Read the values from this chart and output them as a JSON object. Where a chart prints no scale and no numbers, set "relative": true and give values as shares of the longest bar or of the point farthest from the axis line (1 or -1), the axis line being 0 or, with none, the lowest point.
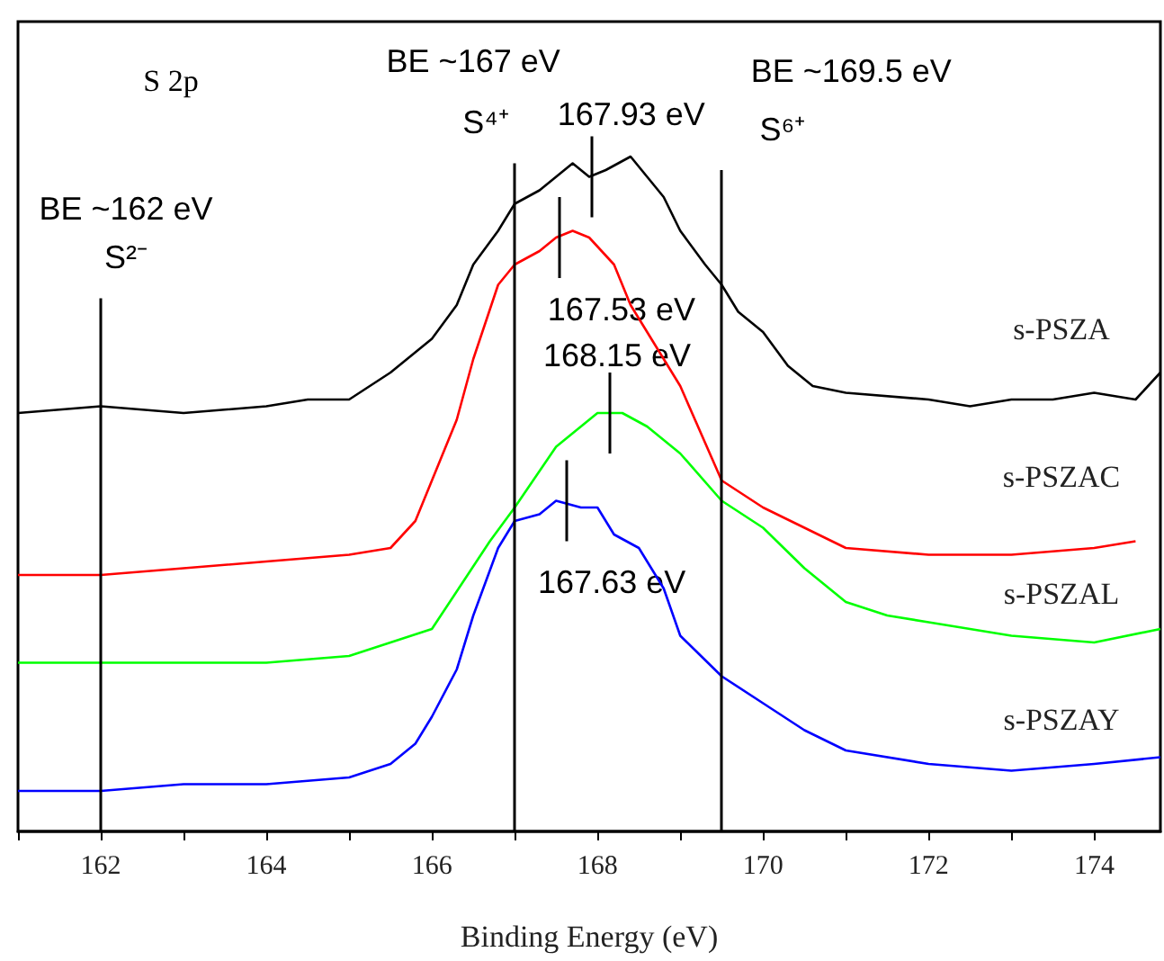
{
  "chart_data": {
    "type": "line",
    "relative": true,
    "xlabel": "Binding Energy (eV)",
    "legend": false,
    "grid": false,
    "xlim": [
      161,
      174.8
    ],
    "xticks": [
      {
        "value": 161,
        "label": null
      },
      162,
      {
        "value": 163,
        "label": null
      },
      164,
      {
        "value": 165,
        "label": null
      },
      166,
      {
        "value": 167,
        "label": null
      },
      168,
      {
        "value": 169,
        "label": null
      },
      170,
      {
        "value": 171,
        "label": null
      },
      172,
      {
        "value": 173,
        "label": null
      },
      174
    ],
    "series": [
      {
        "name": "s-PSZA",
        "color": "#000000",
        "x": [
          161,
          162,
          163,
          164,
          164.5,
          165,
          165.5,
          166,
          166.3,
          166.5,
          166.8,
          167,
          167.3,
          167.5,
          167.7,
          167.9,
          168.1,
          168.4,
          168.6,
          168.8,
          169,
          169.3,
          169.5,
          169.7,
          170,
          170.3,
          170.6,
          171,
          172,
          172.5,
          173,
          173.5,
          174,
          174.5,
          174.8
        ],
        "values": [
          0.62,
          0.63,
          0.62,
          0.63,
          0.64,
          0.64,
          0.68,
          0.73,
          0.78,
          0.84,
          0.89,
          0.93,
          0.95,
          0.97,
          0.99,
          0.97,
          0.98,
          1.0,
          0.97,
          0.94,
          0.89,
          0.84,
          0.81,
          0.77,
          0.74,
          0.69,
          0.66,
          0.65,
          0.64,
          0.63,
          0.64,
          0.64,
          0.65,
          0.64,
          0.68
        ]
      },
      {
        "name": "s-PSZAC",
        "color": "#ff0000",
        "x": [
          161,
          162,
          163,
          164,
          165,
          165.5,
          165.8,
          166,
          166.3,
          166.5,
          166.8,
          167,
          167.3,
          167.5,
          167.7,
          167.9,
          168.2,
          168.4,
          168.7,
          169,
          169.5,
          170,
          170.5,
          171,
          172,
          173,
          174,
          174.5
        ],
        "values": [
          0.38,
          0.38,
          0.39,
          0.4,
          0.41,
          0.42,
          0.46,
          0.52,
          0.61,
          0.7,
          0.81,
          0.84,
          0.86,
          0.88,
          0.89,
          0.88,
          0.84,
          0.78,
          0.72,
          0.66,
          0.52,
          0.48,
          0.45,
          0.42,
          0.41,
          0.41,
          0.42,
          0.43
        ]
      },
      {
        "name": "s-PSZAL",
        "color": "#00ff00",
        "x": [
          161,
          162,
          163,
          164,
          165,
          165.5,
          166,
          166.7,
          167,
          167.5,
          168,
          168.3,
          168.6,
          169,
          169.5,
          170,
          170.5,
          171,
          171.5,
          172,
          173,
          174,
          174.8
        ],
        "values": [
          0.25,
          0.25,
          0.25,
          0.25,
          0.26,
          0.28,
          0.3,
          0.43,
          0.48,
          0.57,
          0.62,
          0.62,
          0.6,
          0.56,
          0.49,
          0.45,
          0.39,
          0.34,
          0.32,
          0.31,
          0.29,
          0.28,
          0.3
        ]
      },
      {
        "name": "s-PSZAY",
        "color": "#0000ff",
        "x": [
          161,
          162,
          163,
          164,
          165,
          165.5,
          165.8,
          166,
          166.3,
          166.5,
          166.8,
          167,
          167.3,
          167.5,
          167.8,
          168,
          168.2,
          168.5,
          168.8,
          169,
          169.5,
          170,
          170.5,
          171,
          172,
          173,
          174,
          174.8
        ],
        "values": [
          0.06,
          0.06,
          0.07,
          0.07,
          0.08,
          0.1,
          0.13,
          0.17,
          0.24,
          0.32,
          0.42,
          0.46,
          0.47,
          0.49,
          0.48,
          0.48,
          0.44,
          0.42,
          0.36,
          0.29,
          0.23,
          0.19,
          0.15,
          0.12,
          0.1,
          0.09,
          0.1,
          0.11
        ]
      }
    ],
    "ref_lines": [
      {
        "axis": "x",
        "value": 162,
        "label": "BE ~162 eV",
        "color": "#000000"
      },
      {
        "axis": "x",
        "value": 167,
        "label": "BE ~167 eV",
        "color": "#000000"
      },
      {
        "axis": "x",
        "value": 169.5,
        "label": "BE ~169.5 eV",
        "color": "#000000"
      }
    ],
    "annotations": [
      "S 2p",
      "S²⁻",
      "S⁴⁺",
      "S⁶⁺",
      {
        "text": "167.93 eV",
        "x": 167.93,
        "y": 0.97
      },
      {
        "text": "167.53 eV",
        "x": 167.53,
        "y": 0.88
      },
      {
        "text": "168.15 eV",
        "x": 168.15,
        "y": 0.62
      },
      {
        "text": "167.63 eV",
        "x": 167.63,
        "y": 0.49
      }
    ]
  }
}
